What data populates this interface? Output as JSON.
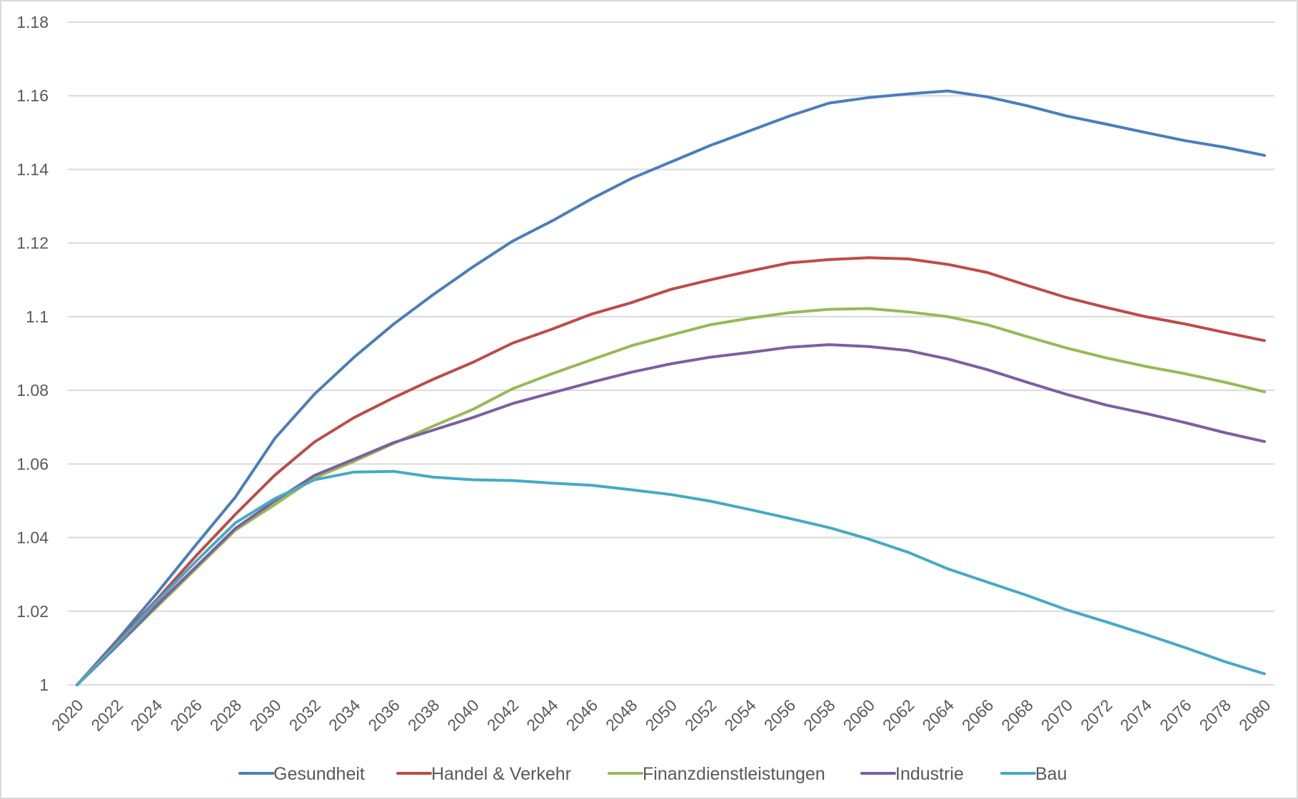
{
  "chart_data": {
    "type": "line",
    "title": "",
    "xlabel": "",
    "ylabel": "",
    "ylim": [
      1,
      1.18
    ],
    "yticks": [
      "1",
      "1.02",
      "1.04",
      "1.06",
      "1.08",
      "1.1",
      "1.12",
      "1.14",
      "1.16",
      "1.18"
    ],
    "grid": true,
    "legend_position": "bottom",
    "x": [
      2020,
      2022,
      2024,
      2026,
      2028,
      2030,
      2032,
      2034,
      2036,
      2038,
      2040,
      2042,
      2044,
      2046,
      2048,
      2050,
      2052,
      2054,
      2056,
      2058,
      2060,
      2062,
      2064,
      2066,
      2068,
      2070,
      2072,
      2074,
      2076,
      2078,
      2080
    ],
    "series": [
      {
        "name": "Gesundheit",
        "color": "#4a7ebb",
        "values": [
          1,
          1.012,
          1.0247,
          1.038,
          1.051,
          1.067,
          1.079,
          1.089,
          1.098,
          1.106,
          1.1135,
          1.1205,
          1.126,
          1.132,
          1.1375,
          1.142,
          1.1465,
          1.1505,
          1.1545,
          1.158,
          1.1595,
          1.1605,
          1.1613,
          1.1597,
          1.1573,
          1.1545,
          1.1523,
          1.15,
          1.1478,
          1.146,
          1.1438
        ]
      },
      {
        "name": "Handel & Verkehr",
        "color": "#be4b48",
        "values": [
          1,
          1.0115,
          1.023,
          1.035,
          1.0463,
          1.057,
          1.066,
          1.0726,
          1.078,
          1.083,
          1.0876,
          1.0928,
          1.0966,
          1.1007,
          1.1038,
          1.1074,
          1.11,
          1.1124,
          1.1146,
          1.1155,
          1.116,
          1.1157,
          1.1142,
          1.112,
          1.1085,
          1.1052,
          1.1025,
          1.1,
          1.098,
          1.0957,
          1.0935
        ]
      },
      {
        "name": "Finanzdienstleistungen",
        "color": "#98b954",
        "values": [
          1,
          1.0105,
          1.021,
          1.0315,
          1.042,
          1.049,
          1.0562,
          1.0607,
          1.0656,
          1.0703,
          1.0748,
          1.0804,
          1.0845,
          1.0883,
          1.0921,
          1.095,
          1.0978,
          1.0996,
          1.1011,
          1.102,
          1.1022,
          1.1013,
          1.1,
          1.0978,
          1.0946,
          1.0915,
          1.0888,
          1.0865,
          1.0845,
          1.0822,
          1.0796
        ]
      },
      {
        "name": "Industrie",
        "color": "#7d5fa0",
        "values": [
          1,
          1.0105,
          1.0215,
          1.032,
          1.0425,
          1.05,
          1.0569,
          1.0613,
          1.0658,
          1.0692,
          1.0726,
          1.0764,
          1.0793,
          1.0822,
          1.0849,
          1.0872,
          1.089,
          1.0903,
          1.0917,
          1.0924,
          1.0919,
          1.0908,
          1.0885,
          1.0856,
          1.0822,
          1.0789,
          1.076,
          1.0737,
          1.0712,
          1.0685,
          1.0661
        ]
      },
      {
        "name": "Bau",
        "color": "#46aac5",
        "values": [
          1,
          1.011,
          1.0225,
          1.0335,
          1.044,
          1.0506,
          1.0557,
          1.0578,
          1.058,
          1.0564,
          1.0557,
          1.0555,
          1.0548,
          1.0542,
          1.053,
          1.0517,
          1.0499,
          1.0476,
          1.0452,
          1.0427,
          1.0396,
          1.036,
          1.0315,
          1.0279,
          1.0243,
          1.0204,
          1.0171,
          1.0137,
          1.0101,
          1.0063,
          1.003
        ]
      }
    ]
  }
}
